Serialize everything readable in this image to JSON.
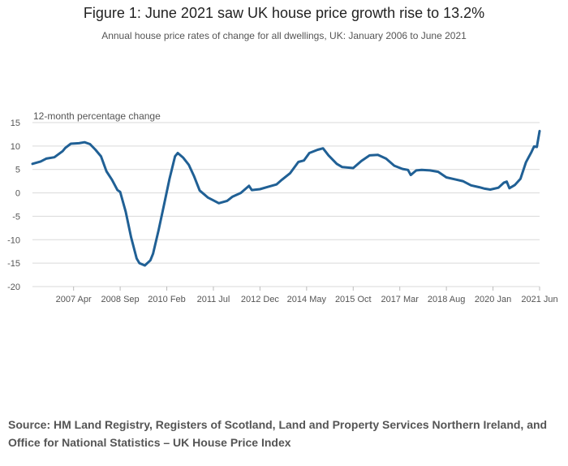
{
  "title": "Figure 1: June 2021 saw UK house price growth rise to 13.2%",
  "subtitle": "Annual house price rates of change for all dwellings, UK: January 2006 to June 2021",
  "source": "Source: HM Land Registry, Registers of Scotland, Land and Property Services Northern Ireland, and Office for National Statistics – UK House Price Index",
  "colors": {
    "line": "#206095",
    "grid": "#d9d9d9",
    "axis_text": "#555555"
  },
  "chart_data": {
    "type": "line",
    "title": "Figure 1: June 2021 saw UK house price growth rise to 13.2%",
    "subtitle": "Annual house price rates of change for all dwellings, UK: January 2006 to June 2021",
    "ylabel": "12-month percentage change",
    "xlabel": "",
    "ylim": [
      -20,
      15
    ],
    "yticks": [
      15,
      10,
      5,
      0,
      -5,
      -10,
      -15,
      -20
    ],
    "xlim": [
      "2006-01",
      "2021-06"
    ],
    "xticks": [
      {
        "date": "2007-04",
        "label": "2007 Apr"
      },
      {
        "date": "2008-09",
        "label": "2008 Sep"
      },
      {
        "date": "2010-02",
        "label": "2010 Feb"
      },
      {
        "date": "2011-07",
        "label": "2011 Jul"
      },
      {
        "date": "2012-12",
        "label": "2012 Dec"
      },
      {
        "date": "2014-05",
        "label": "2014 May"
      },
      {
        "date": "2015-10",
        "label": "2015 Oct"
      },
      {
        "date": "2017-03",
        "label": "2017 Mar"
      },
      {
        "date": "2018-08",
        "label": "2018 Aug"
      },
      {
        "date": "2020-01",
        "label": "2020 Jan"
      },
      {
        "date": "2021-06",
        "label": "2021 Jun"
      }
    ],
    "grid": true,
    "series": [
      {
        "points": [
          [
            "2006-01",
            6.2
          ],
          [
            "2006-04",
            6.7
          ],
          [
            "2006-06",
            7.3
          ],
          [
            "2006-09",
            7.6
          ],
          [
            "2006-12",
            8.9
          ],
          [
            "2007-01",
            9.6
          ],
          [
            "2007-03",
            10.5
          ],
          [
            "2007-06",
            10.6
          ],
          [
            "2007-08",
            10.8
          ],
          [
            "2007-10",
            10.4
          ],
          [
            "2007-12",
            9.2
          ],
          [
            "2008-02",
            7.8
          ],
          [
            "2008-04",
            4.6
          ],
          [
            "2008-06",
            2.8
          ],
          [
            "2008-08",
            0.6
          ],
          [
            "2008-09",
            0.2
          ],
          [
            "2008-11",
            -4.0
          ],
          [
            "2009-01",
            -9.5
          ],
          [
            "2009-03",
            -14.0
          ],
          [
            "2009-04",
            -15.0
          ],
          [
            "2009-06",
            -15.5
          ],
          [
            "2009-08",
            -14.4
          ],
          [
            "2009-09",
            -13.0
          ],
          [
            "2009-11",
            -8.0
          ],
          [
            "2010-01",
            -2.5
          ],
          [
            "2010-03",
            3.0
          ],
          [
            "2010-05",
            7.8
          ],
          [
            "2010-06",
            8.5
          ],
          [
            "2010-08",
            7.5
          ],
          [
            "2010-10",
            6.0
          ],
          [
            "2010-12",
            3.5
          ],
          [
            "2011-02",
            0.5
          ],
          [
            "2011-05",
            -1.0
          ],
          [
            "2011-07",
            -1.6
          ],
          [
            "2011-09",
            -2.2
          ],
          [
            "2011-12",
            -1.7
          ],
          [
            "2012-02",
            -0.8
          ],
          [
            "2012-05",
            0.0
          ],
          [
            "2012-08",
            1.5
          ],
          [
            "2012-09",
            0.6
          ],
          [
            "2012-12",
            0.8
          ],
          [
            "2013-03",
            1.3
          ],
          [
            "2013-06",
            1.8
          ],
          [
            "2013-08",
            2.8
          ],
          [
            "2013-11",
            4.2
          ],
          [
            "2014-02",
            6.6
          ],
          [
            "2014-04",
            6.9
          ],
          [
            "2014-06",
            8.5
          ],
          [
            "2014-09",
            9.2
          ],
          [
            "2014-11",
            9.5
          ],
          [
            "2015-01",
            8.0
          ],
          [
            "2015-04",
            6.2
          ],
          [
            "2015-06",
            5.5
          ],
          [
            "2015-08",
            5.4
          ],
          [
            "2015-10",
            5.3
          ],
          [
            "2016-01",
            6.8
          ],
          [
            "2016-04",
            8.0
          ],
          [
            "2016-07",
            8.1
          ],
          [
            "2016-10",
            7.3
          ],
          [
            "2017-01",
            5.8
          ],
          [
            "2017-04",
            5.1
          ],
          [
            "2017-06",
            4.9
          ],
          [
            "2017-07",
            3.8
          ],
          [
            "2017-09",
            4.8
          ],
          [
            "2017-11",
            4.9
          ],
          [
            "2018-02",
            4.8
          ],
          [
            "2018-05",
            4.5
          ],
          [
            "2018-08",
            3.3
          ],
          [
            "2018-11",
            2.9
          ],
          [
            "2019-02",
            2.5
          ],
          [
            "2019-05",
            1.6
          ],
          [
            "2019-08",
            1.2
          ],
          [
            "2019-10",
            0.9
          ],
          [
            "2019-12",
            0.7
          ],
          [
            "2020-03",
            1.1
          ],
          [
            "2020-05",
            2.2
          ],
          [
            "2020-06",
            2.4
          ],
          [
            "2020-07",
            1.0
          ],
          [
            "2020-09",
            1.7
          ],
          [
            "2020-11",
            3.0
          ],
          [
            "2021-01",
            6.5
          ],
          [
            "2021-02",
            7.6
          ],
          [
            "2021-03",
            8.7
          ],
          [
            "2021-04",
            9.9
          ],
          [
            "2021-05",
            9.8
          ],
          [
            "2021-06",
            13.2
          ]
        ]
      }
    ]
  }
}
